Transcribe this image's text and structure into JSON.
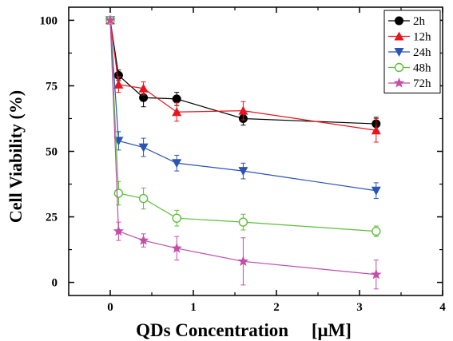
{
  "chart_data": {
    "type": "line",
    "xlabel": "QDs Concentration     [μM]",
    "ylabel": "Cell Viability (%)",
    "xlim": [
      -0.5,
      4
    ],
    "ylim": [
      -5,
      105
    ],
    "xticks": [
      0,
      1,
      2,
      3,
      4
    ],
    "xtick_labels": [
      "0",
      "1",
      "2",
      "3",
      "4"
    ],
    "yticks": [
      0,
      25,
      50,
      75,
      100
    ],
    "ytick_labels": [
      "0",
      "25",
      "50",
      "75",
      "100"
    ],
    "grid": false,
    "legend_position": "top-right",
    "x": [
      0,
      0.1,
      0.4,
      0.8,
      1.6,
      3.2
    ],
    "series": [
      {
        "name": "2h",
        "color": "#000000",
        "marker": "circle-filled",
        "values": [
          100,
          79,
          70.5,
          70,
          62.5,
          60.5
        ],
        "errors": [
          0,
          2,
          3.5,
          2.5,
          2.5,
          2.5
        ]
      },
      {
        "name": "12h",
        "color": "#e8141e",
        "marker": "triangle-up",
        "values": [
          100,
          75.5,
          74,
          65,
          65.5,
          58
        ],
        "errors": [
          0,
          3,
          2.5,
          3.5,
          3.5,
          4.5
        ]
      },
      {
        "name": "24h",
        "color": "#2b54b8",
        "marker": "triangle-down",
        "values": [
          100,
          54,
          51.5,
          45.5,
          42.5,
          35
        ],
        "errors": [
          0,
          3.5,
          3.5,
          3,
          3,
          3
        ]
      },
      {
        "name": "48h",
        "color": "#5cbf3a",
        "marker": "circle-open",
        "values": [
          100,
          34,
          32,
          24.5,
          23,
          19.5
        ],
        "errors": [
          0,
          4.5,
          4,
          3,
          3,
          2
        ]
      },
      {
        "name": "72h",
        "color": "#c24ea8",
        "marker": "star",
        "values": [
          100,
          19.5,
          16,
          13,
          8,
          3
        ],
        "errors": [
          0,
          3.5,
          2.5,
          4.5,
          9,
          5.5
        ]
      }
    ]
  }
}
